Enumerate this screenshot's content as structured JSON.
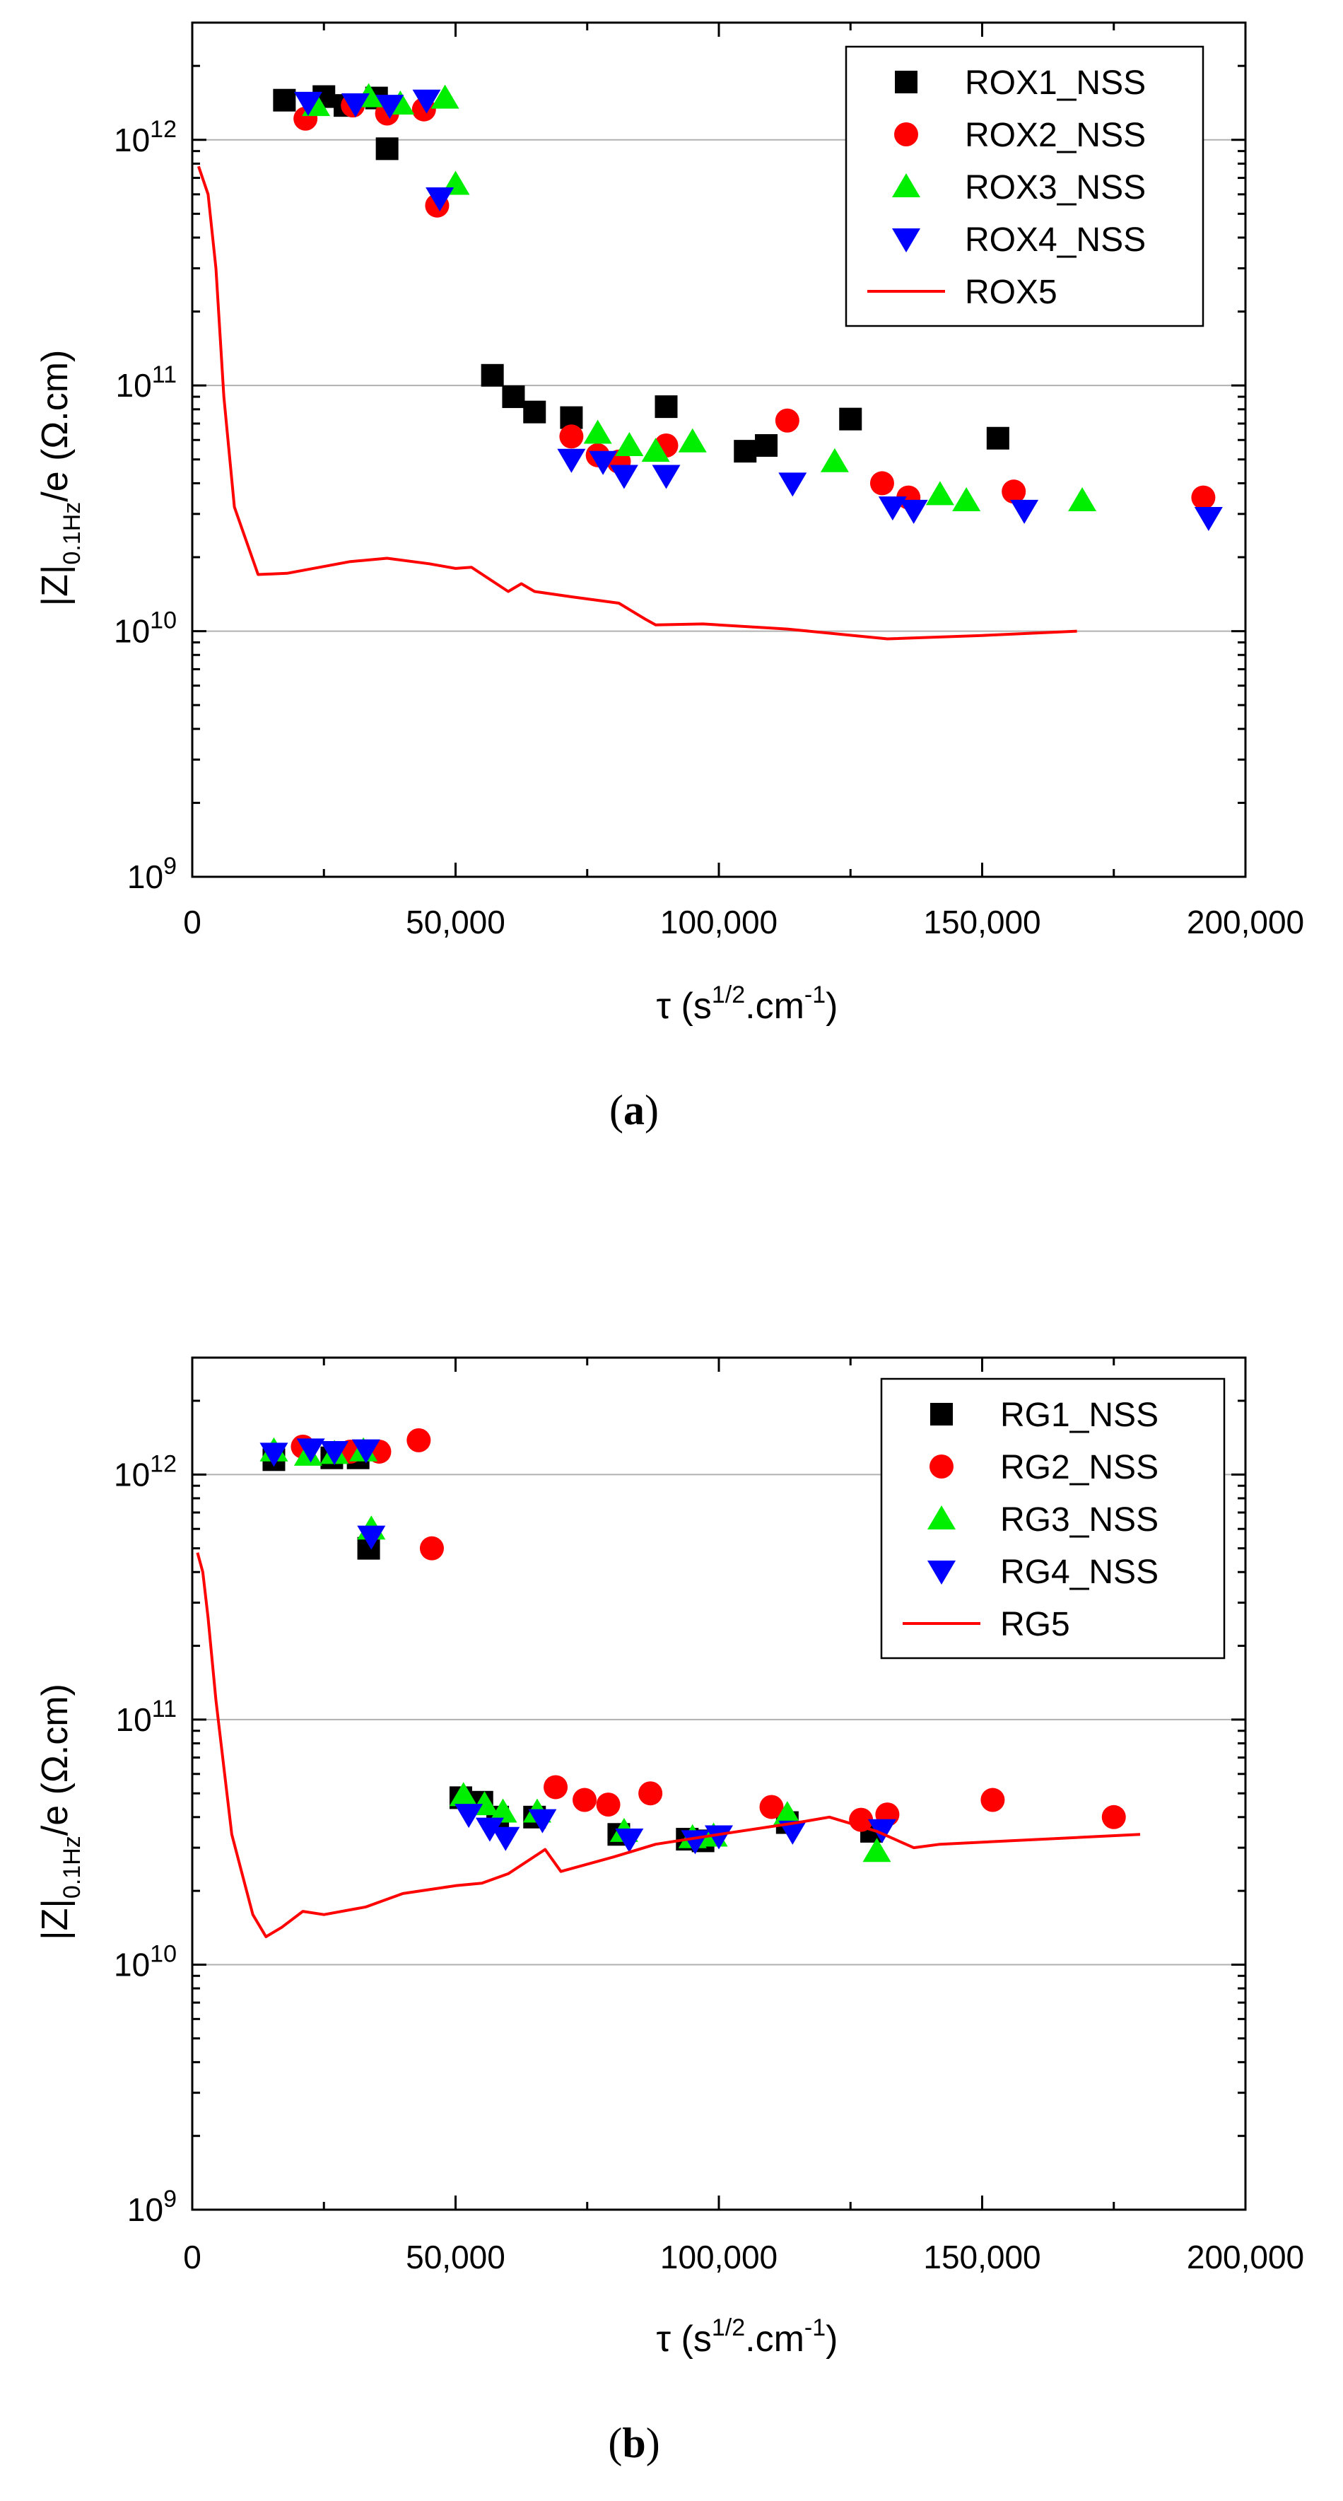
{
  "chart_data": [
    {
      "type": "scatter",
      "panel_label": "(a)",
      "title": "",
      "xlabel": "τ (s^1/2.cm^-1)",
      "ylabel": "|Z|0.1Hz/e (Ω.cm)",
      "xlim": [
        0,
        200000
      ],
      "ylim": [
        1000000000.0,
        3000000000000.0
      ],
      "y_scale": "log",
      "grid": "horizontal major",
      "legend_position": "top-right",
      "x_ticks": [
        "0",
        "50,000",
        "100,000",
        "150,000",
        "200,000"
      ],
      "y_ticks": [
        {
          "base": "10",
          "exp": "9"
        },
        {
          "base": "10",
          "exp": "10"
        },
        {
          "base": "10",
          "exp": "11"
        },
        {
          "base": "10",
          "exp": "12"
        }
      ],
      "series": [
        {
          "name": "ROX1_NSS",
          "marker": "square",
          "color": "#000000",
          "points": [
            [
              17500,
              1450000000000.0
            ],
            [
              25000,
              1500000000000.0
            ],
            [
              29000,
              1380000000000.0
            ],
            [
              35000,
              1480000000000.0
            ],
            [
              37000,
              920000000000.0
            ],
            [
              57000,
              110000000000.0
            ],
            [
              61000,
              90000000000.0
            ],
            [
              65000,
              78000000000.0
            ],
            [
              72000,
              74000000000.0
            ],
            [
              90000,
              82000000000.0
            ],
            [
              105000,
              54000000000.0
            ],
            [
              109000,
              57000000000.0
            ],
            [
              125000,
              73000000000.0
            ],
            [
              153000,
              61000000000.0
            ]
          ]
        },
        {
          "name": "ROX2_NSS",
          "marker": "circle",
          "color": "#ff0000",
          "points": [
            [
              21500,
              1220000000000.0
            ],
            [
              30500,
              1380000000000.0
            ],
            [
              37000,
              1280000000000.0
            ],
            [
              44000,
              1330000000000.0
            ],
            [
              46500,
              540000000000.0
            ],
            [
              72000,
              62000000000.0
            ],
            [
              77000,
              52000000000.0
            ],
            [
              81000,
              49000000000.0
            ],
            [
              90000,
              57000000000.0
            ],
            [
              113000,
              72000000000.0
            ],
            [
              131000,
              40000000000.0
            ],
            [
              136000,
              35000000000.0
            ],
            [
              156000,
              37000000000.0
            ],
            [
              192000,
              35000000000.0
            ]
          ]
        },
        {
          "name": "ROX3_NSS",
          "marker": "triangle-up",
          "color": "#00ee00",
          "points": [
            [
              23500,
              1380000000000.0
            ],
            [
              33500,
              1500000000000.0
            ],
            [
              39500,
              1400000000000.0
            ],
            [
              48000,
              1480000000000.0
            ],
            [
              50000,
              660000000000.0
            ],
            [
              77000,
              64000000000.0
            ],
            [
              83000,
              57000000000.0
            ],
            [
              88000,
              54000000000.0
            ],
            [
              95000,
              59000000000.0
            ],
            [
              122000,
              49000000000.0
            ],
            [
              142000,
              36000000000.0
            ],
            [
              147000,
              34000000000.0
            ],
            [
              169000,
              34000000000.0
            ]
          ]
        },
        {
          "name": "ROX4_NSS",
          "marker": "triangle-down",
          "color": "#0000ff",
          "points": [
            [
              22000,
              1420000000000.0
            ],
            [
              31000,
              1400000000000.0
            ],
            [
              37500,
              1380000000000.0
            ],
            [
              44500,
              1450000000000.0
            ],
            [
              47000,
              580000000000.0
            ],
            [
              72000,
              50000000000.0
            ],
            [
              78000,
              49000000000.0
            ],
            [
              82000,
              43000000000.0
            ],
            [
              90000,
              43000000000.0
            ],
            [
              114000,
              40000000000.0
            ],
            [
              133000,
              32000000000.0
            ],
            [
              137000,
              31000000000.0
            ],
            [
              158000,
              31000000000.0
            ],
            [
              193000,
              29000000000.0
            ]
          ]
        },
        {
          "name": "ROX5",
          "marker": "line",
          "color": "#ff0000",
          "points": [
            [
              1200,
              780000000000.0
            ],
            [
              3000,
              600000000000.0
            ],
            [
              4500,
              300000000000.0
            ],
            [
              6000,
              90000000000.0
            ],
            [
              8000,
              32000000000.0
            ],
            [
              12500,
              17000000000.0
            ],
            [
              18000,
              17200000000.0
            ],
            [
              30000,
              19200000000.0
            ],
            [
              37000,
              19800000000.0
            ],
            [
              45000,
              18800000000.0
            ],
            [
              50000,
              18000000000.0
            ],
            [
              53000,
              18200000000.0
            ],
            [
              60000,
              14500000000.0
            ],
            [
              62500,
              15600000000.0
            ],
            [
              65000,
              14500000000.0
            ],
            [
              72000,
              13800000000.0
            ],
            [
              81000,
              13000000000.0
            ],
            [
              86000,
              11200000000.0
            ],
            [
              88000,
              10600000000.0
            ],
            [
              97000,
              10700000000.0
            ],
            [
              113000,
              10200000000.0
            ],
            [
              132000,
              9300000000.0
            ],
            [
              150000,
              9600000000.0
            ],
            [
              168000,
              10000000000.0
            ]
          ]
        }
      ]
    },
    {
      "type": "scatter",
      "panel_label": "(b)",
      "title": "",
      "xlabel": "τ (s^1/2.cm^-1)",
      "ylabel": "|Z|0.1Hz/e (Ω.cm)",
      "xlim": [
        0,
        200000
      ],
      "ylim": [
        1000000000.0,
        3000000000000.0
      ],
      "y_scale": "log",
      "grid": "horizontal major",
      "legend_position": "top-right",
      "x_ticks": [
        "0",
        "50,000",
        "100,000",
        "150,000",
        "200,000"
      ],
      "y_ticks": [
        {
          "base": "10",
          "exp": "9"
        },
        {
          "base": "10",
          "exp": "10"
        },
        {
          "base": "10",
          "exp": "11"
        },
        {
          "base": "10",
          "exp": "12"
        }
      ],
      "series": [
        {
          "name": "RG1_NSS",
          "marker": "square",
          "color": "#000000",
          "points": [
            [
              15500,
              1150000000000.0
            ],
            [
              26500,
              1170000000000.0
            ],
            [
              31500,
              1170000000000.0
            ],
            [
              33500,
              500000000000.0
            ],
            [
              51000,
              48000000000.0
            ],
            [
              55000,
              46000000000.0
            ],
            [
              58000,
              40000000000.0
            ],
            [
              65000,
              40000000000.0
            ],
            [
              81000,
              34000000000.0
            ],
            [
              94000,
              32500000000.0
            ],
            [
              97000,
              32000000000.0
            ],
            [
              113000,
              38000000000.0
            ],
            [
              129000,
              35000000000.0
            ]
          ]
        },
        {
          "name": "RG2_NSS",
          "marker": "circle",
          "color": "#ff0000",
          "points": [
            [
              21000,
              1300000000000.0
            ],
            [
              30000,
              1240000000000.0
            ],
            [
              35500,
              1240000000000.0
            ],
            [
              43000,
              1380000000000.0
            ],
            [
              45500,
              500000000000.0
            ],
            [
              69000,
              53000000000.0
            ],
            [
              74500,
              47000000000.0
            ],
            [
              79000,
              45000000000.0
            ],
            [
              87000,
              50000000000.0
            ],
            [
              110000,
              44000000000.0
            ],
            [
              127000,
              39000000000.0
            ],
            [
              132000,
              41000000000.0
            ],
            [
              152000,
              47000000000.0
            ],
            [
              175000,
              40000000000.0
            ]
          ]
        },
        {
          "name": "RG3_NSS",
          "marker": "triangle-up",
          "color": "#00ee00",
          "points": [
            [
              15500,
              1250000000000.0
            ],
            [
              22000,
              1200000000000.0
            ],
            [
              27000,
              1220000000000.0
            ],
            [
              32500,
              1250000000000.0
            ],
            [
              34000,
              600000000000.0
            ],
            [
              51500,
              49000000000.0
            ],
            [
              55500,
              45000000000.0
            ],
            [
              59000,
              42000000000.0
            ],
            [
              65500,
              42000000000.0
            ],
            [
              82000,
              35000000000.0
            ],
            [
              95000,
              33000000000.0
            ],
            [
              99000,
              33500000000.0
            ],
            [
              113000,
              41000000000.0
            ],
            [
              130000,
              29000000000.0
            ]
          ]
        },
        {
          "name": "RG4_NSS",
          "marker": "triangle-down",
          "color": "#0000ff",
          "points": [
            [
              15500,
              1220000000000.0
            ],
            [
              22500,
              1270000000000.0
            ],
            [
              27000,
              1240000000000.0
            ],
            [
              33000,
              1260000000000.0
            ],
            [
              34000,
              560000000000.0
            ],
            [
              52500,
              41000000000.0
            ],
            [
              56500,
              36000000000.0
            ],
            [
              59500,
              33000000000.0
            ],
            [
              66500,
              39000000000.0
            ],
            [
              83000,
              32500000000.0
            ],
            [
              95500,
              32000000000.0
            ],
            [
              100000,
              33500000000.0
            ],
            [
              114000,
              35000000000.0
            ],
            [
              131000,
              35500000000.0
            ]
          ]
        },
        {
          "name": "RG5",
          "marker": "line",
          "color": "#ff0000",
          "points": [
            [
              1000,
              480000000000.0
            ],
            [
              2000,
              400000000000.0
            ],
            [
              3000,
              260000000000.0
            ],
            [
              4500,
              120000000000.0
            ],
            [
              7500,
              34000000000.0
            ],
            [
              11500,
              16000000000.0
            ],
            [
              14000,
              13000000000.0
            ],
            [
              17000,
              14200000000.0
            ],
            [
              21000,
              16500000000.0
            ],
            [
              25000,
              16000000000.0
            ],
            [
              33000,
              17200000000.0
            ],
            [
              40000,
              19500000000.0
            ],
            [
              50000,
              21000000000.0
            ],
            [
              55000,
              21500000000.0
            ],
            [
              60000,
              23500000000.0
            ],
            [
              67000,
              29500000000.0
            ],
            [
              70000,
              24000000000.0
            ],
            [
              80000,
              27500000000.0
            ],
            [
              88000,
              31000000000.0
            ],
            [
              100000,
              34000000000.0
            ],
            [
              115000,
              38000000000.0
            ],
            [
              121000,
              40000000000.0
            ],
            [
              130000,
              35000000000.0
            ],
            [
              137000,
              30000000000.0
            ],
            [
              142000,
              31000000000.0
            ],
            [
              180000,
              34000000000.0
            ]
          ]
        }
      ]
    }
  ]
}
